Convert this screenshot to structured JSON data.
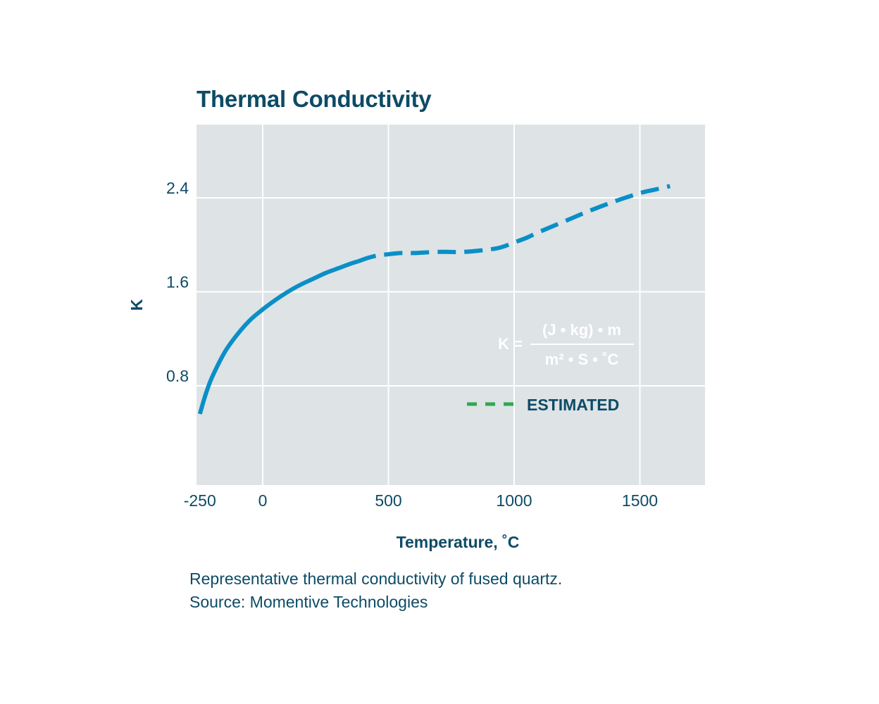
{
  "chart_data": {
    "type": "line",
    "title": "Thermal Conductivity",
    "xlabel": "Temperature, ˚C",
    "ylabel": "K",
    "xlim": [
      -250,
      1750
    ],
    "ylim": [
      0,
      3.0
    ],
    "x_ticks": [
      -250,
      0,
      500,
      1000,
      1500
    ],
    "x_tick_labels": [
      "-250",
      "0",
      "500",
      "1000",
      "1500"
    ],
    "y_ticks": [
      0.8,
      1.6,
      2.4
    ],
    "y_tick_labels": [
      "0.8",
      "1.6",
      "2.4"
    ],
    "grid": true,
    "series": [
      {
        "style": "solid",
        "color": "#0a8fc7",
        "x": [
          -250,
          -225,
          -200,
          -150,
          -100,
          -50,
          0,
          50,
          100,
          150,
          200,
          250,
          300,
          350,
          380
        ],
        "y": [
          0.56,
          0.74,
          0.88,
          1.09,
          1.24,
          1.36,
          1.45,
          1.53,
          1.6,
          1.66,
          1.71,
          1.76,
          1.8,
          1.84,
          1.86
        ]
      },
      {
        "style": "dashed",
        "label": "ESTIMATED",
        "color": "#0a8fc7",
        "x": [
          380,
          420,
          460,
          500,
          550,
          600,
          700,
          800,
          900,
          950,
          1000,
          1050,
          1100,
          1200,
          1300,
          1400,
          1500,
          1560,
          1620
        ],
        "y": [
          1.86,
          1.89,
          1.91,
          1.92,
          1.93,
          1.93,
          1.94,
          1.94,
          1.96,
          1.98,
          2.02,
          2.06,
          2.11,
          2.2,
          2.29,
          2.37,
          2.44,
          2.47,
          2.5
        ]
      }
    ],
    "formula": {
      "lhs": "K =",
      "numerator": "(J • kg) • m",
      "denominator": "m² • S • ˚C"
    },
    "legend": {
      "label": "ESTIMATED",
      "color": "#2fa84f",
      "position": "bottom-right"
    },
    "colors": {
      "plot_background": "#dee3e6",
      "grid": "#ffffff",
      "text": "#0d4b66",
      "line": "#0a8fc7"
    }
  },
  "caption": {
    "line1": "Representative thermal conductivity of fused quartz.",
    "line2": "Source: Momentive Technologies"
  }
}
